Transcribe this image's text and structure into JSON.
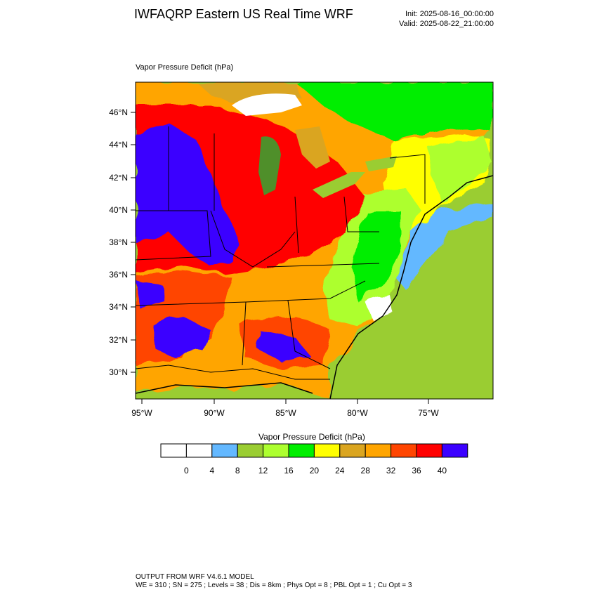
{
  "header": {
    "title": "IWFAQRP Eastern US Real Time WRF",
    "init": "Init: 2025-08-16_00:00:00",
    "valid": "Valid: 2025-08-22_21:00:00"
  },
  "map": {
    "field_title": "Vapor Pressure Deficit   (hPa)",
    "lat_labels": [
      "46°N",
      "44°N",
      "42°N",
      "40°N",
      "38°N",
      "36°N",
      "34°N",
      "32°N",
      "30°N"
    ],
    "lon_labels": [
      "95°W",
      "90°W",
      "85°W",
      "80°W",
      "75°W"
    ]
  },
  "colorbar": {
    "title": "Vapor Pressure Deficit  (hPa)",
    "colors": [
      "#ffffff",
      "#ffffff",
      "#63b8ff",
      "#9acd32",
      "#adff2f",
      "#00ee00",
      "#ffff00",
      "#daa520",
      "#ffa500",
      "#ff4500",
      "#ff0000",
      "#3b00ff"
    ],
    "tick_labels": [
      "0",
      "4",
      "8",
      "12",
      "16",
      "20",
      "24",
      "28",
      "32",
      "36",
      "40"
    ]
  },
  "footer": {
    "line1": "OUTPUT FROM WRF V4.6.1 MODEL",
    "line2": "WE = 310 ; SN = 275 ; Levels = 38 ; Dis = 8km ; Phys Opt = 8 ; PBL Opt = 1 ; Cu Opt = 3"
  }
}
